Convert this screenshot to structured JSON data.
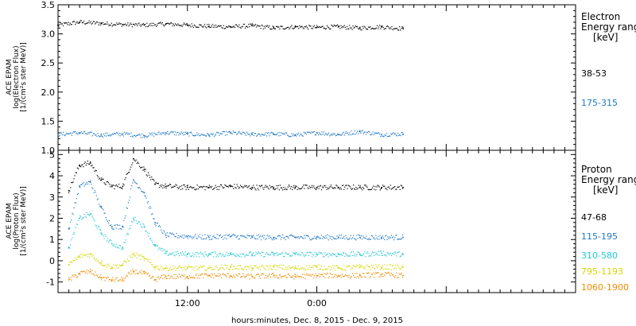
{
  "xaxis": {
    "label": "hours:minutes, Dec.  8, 2015 - Dec.  9, 2015",
    "ticks": [
      "12:00",
      "0:00"
    ]
  },
  "panels": {
    "electron": {
      "ylabel_lines": [
        "ACE EPAM",
        "log(Electron Flux)",
        "[1/(cm²s ster MeV)]"
      ],
      "legend_title": [
        "Electron",
        "Energy ranges",
        "[keV]"
      ]
    },
    "proton": {
      "ylabel_lines": [
        "ACE EPAM",
        "log(Proton Flux)",
        "[1/(cm²s ster MeV)]"
      ],
      "legend_title": [
        "Proton",
        "Energy ranges",
        "[keV]"
      ]
    }
  },
  "chart_data": [
    {
      "type": "scatter",
      "panel": "electron",
      "x_unit": "hours since Dec 8 2015 00:00",
      "xlim": [
        0,
        48
      ],
      "ylim": [
        1.0,
        3.5
      ],
      "yticks": [
        "1.0",
        "1.5",
        "2.0",
        "2.5",
        "3.0",
        "3.5"
      ],
      "ytick_values": [
        1.0,
        1.5,
        2.0,
        2.5,
        3.0,
        3.5
      ],
      "series": [
        {
          "name": "38-53",
          "color": "#000000",
          "x": [
            0,
            2,
            4,
            6,
            8,
            10,
            12,
            14,
            16,
            18,
            20,
            22,
            24,
            26,
            28,
            30,
            32
          ],
          "y": [
            3.15,
            3.2,
            3.18,
            3.16,
            3.15,
            3.17,
            3.15,
            3.13,
            3.12,
            3.14,
            3.1,
            3.12,
            3.11,
            3.12,
            3.1,
            3.12,
            3.09
          ]
        },
        {
          "name": "175-315",
          "color": "#1f78c8",
          "x": [
            0,
            2,
            4,
            6,
            8,
            10,
            12,
            14,
            16,
            18,
            20,
            22,
            24,
            26,
            28,
            30,
            32
          ],
          "y": [
            1.27,
            1.3,
            1.26,
            1.28,
            1.25,
            1.3,
            1.28,
            1.26,
            1.3,
            1.27,
            1.28,
            1.26,
            1.3,
            1.27,
            1.32,
            1.27,
            1.28
          ]
        }
      ]
    },
    {
      "type": "scatter",
      "panel": "proton",
      "x_unit": "hours since Dec 8 2015 00:00",
      "xlim": [
        0,
        48
      ],
      "ylim": [
        -1.5,
        5.2
      ],
      "yticks": [
        "-1",
        "0",
        "1",
        "2",
        "3",
        "4",
        "5"
      ],
      "ytick_values": [
        -1,
        0,
        1,
        2,
        3,
        4,
        5
      ],
      "series": [
        {
          "name": "47-68",
          "color": "#000000",
          "x": [
            1,
            2,
            3,
            4,
            5,
            6,
            7,
            8,
            9,
            10,
            12,
            14,
            16,
            18,
            20,
            22,
            24,
            26,
            28,
            30,
            32
          ],
          "y": [
            3.3,
            4.5,
            4.6,
            3.8,
            3.5,
            3.5,
            4.8,
            4.3,
            3.6,
            3.5,
            3.45,
            3.45,
            3.5,
            3.45,
            3.45,
            3.45,
            3.45,
            3.45,
            3.45,
            3.45,
            3.45
          ]
        },
        {
          "name": "115-195",
          "color": "#1f78c8",
          "x": [
            1,
            2,
            3,
            4,
            5,
            6,
            7,
            8,
            9,
            10,
            12,
            14,
            16,
            18,
            20,
            22,
            24,
            26,
            28,
            30,
            32
          ],
          "y": [
            1.5,
            3.5,
            3.7,
            2.5,
            1.6,
            1.6,
            3.8,
            3.2,
            1.8,
            1.2,
            1.15,
            1.1,
            1.15,
            1.1,
            1.1,
            1.1,
            1.1,
            1.1,
            1.1,
            1.1,
            1.1
          ]
        },
        {
          "name": "310-580",
          "color": "#22c8d2",
          "x": [
            1,
            2,
            3,
            4,
            5,
            6,
            7,
            8,
            9,
            10,
            12,
            14,
            16,
            18,
            20,
            22,
            24,
            26,
            28,
            30,
            32
          ],
          "y": [
            0.6,
            2.0,
            2.2,
            1.3,
            0.8,
            0.6,
            2.0,
            1.6,
            0.7,
            0.35,
            0.3,
            0.3,
            0.3,
            0.3,
            0.3,
            0.3,
            0.3,
            0.3,
            0.3,
            0.35,
            0.3
          ]
        },
        {
          "name": "795-1193",
          "color": "#d6d600",
          "x": [
            1,
            2,
            3,
            4,
            5,
            6,
            7,
            8,
            9,
            10,
            12,
            14,
            16,
            18,
            20,
            22,
            24,
            26,
            28,
            30,
            32
          ],
          "y": [
            -0.2,
            0.2,
            0.3,
            -0.1,
            -0.3,
            -0.2,
            0.3,
            0.1,
            -0.3,
            -0.35,
            -0.35,
            -0.35,
            -0.3,
            -0.35,
            -0.3,
            -0.35,
            -0.3,
            -0.35,
            -0.3,
            -0.3,
            -0.3
          ]
        },
        {
          "name": "1060-1900",
          "color": "#f08c00",
          "x": [
            1,
            2,
            3,
            4,
            5,
            6,
            7,
            8,
            9,
            10,
            12,
            14,
            16,
            18,
            20,
            22,
            24,
            26,
            28,
            30,
            32
          ],
          "y": [
            -0.9,
            -0.6,
            -0.5,
            -0.8,
            -0.9,
            -0.9,
            -0.5,
            -0.6,
            -0.9,
            -0.75,
            -0.75,
            -0.7,
            -0.7,
            -0.75,
            -0.7,
            -0.75,
            -0.7,
            -0.7,
            -0.7,
            -0.65,
            -0.7
          ]
        }
      ]
    }
  ]
}
